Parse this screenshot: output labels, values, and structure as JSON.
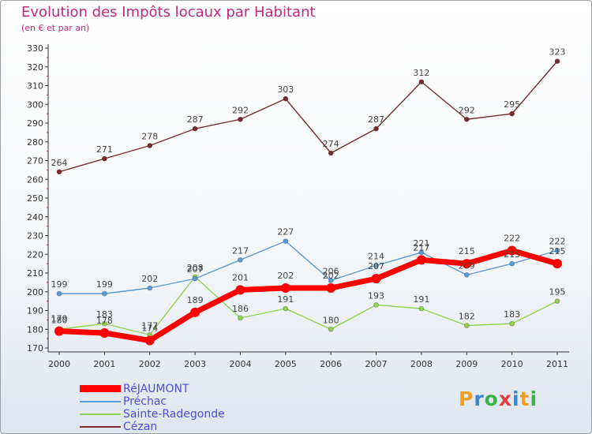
{
  "title": "Evolution des Impôts locaux par Habitant",
  "subtitle": "(en € et par an)",
  "logo": {
    "text": "Proxiti",
    "colors": [
      "#f0a020",
      "#3a86d0",
      "#39b54a",
      "#e04040",
      "#3a86d0",
      "#f0a020",
      "#39b54a"
    ]
  },
  "chart_data": {
    "type": "line",
    "title": "Evolution des Impôts locaux par Habitant",
    "subtitle": "(en € et par an)",
    "x": [
      "2000",
      "2001",
      "2002",
      "2003",
      "2004",
      "2005",
      "2006",
      "2007",
      "2008",
      "2009",
      "2010",
      "2011"
    ],
    "ylim": [
      170,
      330
    ],
    "yticks": [
      170,
      180,
      190,
      200,
      210,
      220,
      230,
      240,
      250,
      260,
      270,
      280,
      290,
      300,
      310,
      320,
      330
    ],
    "grid": false,
    "legend_position": "bottom-left",
    "series": [
      {
        "name": "RéJAUMONT",
        "color": "#ff0000",
        "values": [
          179,
          178,
          174,
          189,
          201,
          202,
          202,
          207,
          217,
          215,
          222,
          215
        ],
        "labels": [
          "179",
          "178",
          "174",
          "189",
          "201",
          "202",
          "202",
          "207",
          "217",
          "215",
          "222",
          "215"
        ]
      },
      {
        "name": "Préchac",
        "color": "#5b9bd5",
        "values": [
          199,
          199,
          202,
          207,
          217,
          227,
          206,
          214,
          221,
          209,
          215,
          222
        ],
        "labels": [
          "199",
          "199",
          "202",
          "207",
          "217",
          "227",
          "206",
          "214",
          "221",
          "209",
          "215",
          "222"
        ]
      },
      {
        "name": "Sainte-Radegonde",
        "color": "#92d050",
        "values": [
          180,
          183,
          177,
          208,
          186,
          191,
          180,
          193,
          191,
          182,
          183,
          195
        ],
        "labels": [
          "180",
          "183",
          "177",
          "208",
          "186",
          "191",
          "180",
          "193",
          "191",
          "182",
          "183",
          "195"
        ]
      },
      {
        "name": "Cézan",
        "color": "#7b2a2f",
        "values": [
          264,
          271,
          278,
          287,
          292,
          303,
          274,
          287,
          312,
          292,
          295,
          323
        ],
        "labels": [
          "264",
          "271",
          "278",
          "287",
          "292",
          "303",
          "274",
          "287",
          "312",
          "292",
          "295",
          "323"
        ]
      }
    ]
  }
}
